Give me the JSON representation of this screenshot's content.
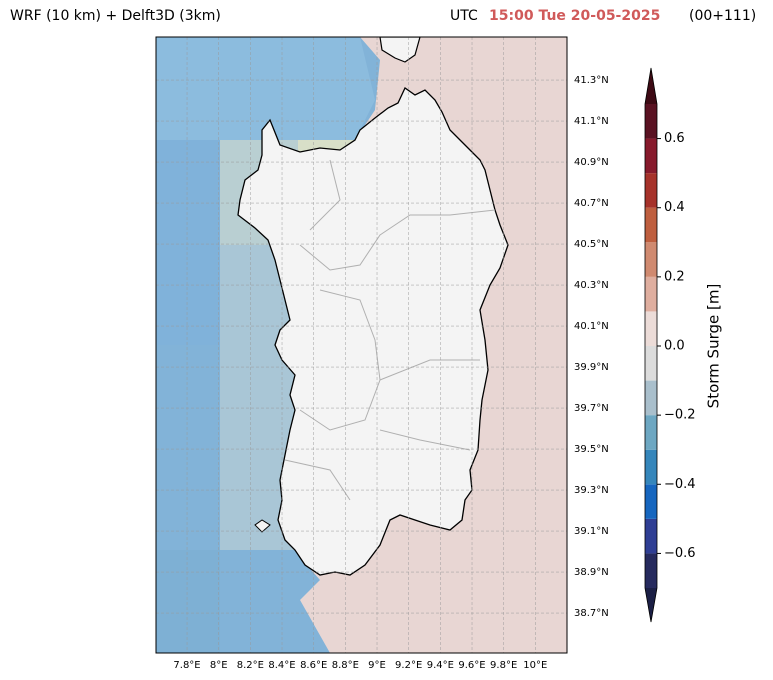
{
  "header": {
    "left_title": "WRF (10 km) + Delft3D (3km)",
    "utc_label": "UTC",
    "datetime": "15:00 Tue 20-05-2025",
    "forecast": "(00+111)"
  },
  "map": {
    "xlim": [
      7.604,
      10.2
    ],
    "ylim": [
      38.505,
      41.51
    ],
    "grid": true,
    "xticks": [
      {
        "value": 7.8,
        "label": "7.8°E"
      },
      {
        "value": 8,
        "label": "8°E"
      },
      {
        "value": 8.2,
        "label": "8.2°E"
      },
      {
        "value": 8.4,
        "label": "8.4°E"
      },
      {
        "value": 8.6,
        "label": "8.6°E"
      },
      {
        "value": 8.8,
        "label": "8.8°E"
      },
      {
        "value": 9,
        "label": "9°E"
      },
      {
        "value": 9.2,
        "label": "9.2°E"
      },
      {
        "value": 9.4,
        "label": "9.4°E"
      },
      {
        "value": 9.6,
        "label": "9.6°E"
      },
      {
        "value": 9.8,
        "label": "9.8°E"
      },
      {
        "value": 10,
        "label": "10°E"
      }
    ],
    "yticks": [
      {
        "value": 41.3,
        "label": "41.3°N"
      },
      {
        "value": 41.1,
        "label": "41.1°N"
      },
      {
        "value": 40.9,
        "label": "40.9°N"
      },
      {
        "value": 40.7,
        "label": "40.7°N"
      },
      {
        "value": 40.5,
        "label": "40.5°N"
      },
      {
        "value": 40.3,
        "label": "40.3°N"
      },
      {
        "value": 40.1,
        "label": "40.1°N"
      },
      {
        "value": 39.9,
        "label": "39.9°N"
      },
      {
        "value": 39.7,
        "label": "39.7°N"
      },
      {
        "value": 39.5,
        "label": "39.5°N"
      },
      {
        "value": 39.3,
        "label": "39.3°N"
      },
      {
        "value": 39.1,
        "label": "39.1°N"
      },
      {
        "value": 38.9,
        "label": "38.9°N"
      },
      {
        "value": 38.7,
        "label": "38.7°N"
      }
    ]
  },
  "colorbar": {
    "label": "Storm Surge [m]",
    "lim": [
      -0.7,
      0.7
    ],
    "ticks": [
      {
        "value": -0.6,
        "label": "−0.6"
      },
      {
        "value": -0.4,
        "label": "−0.4"
      },
      {
        "value": -0.2,
        "label": "−0.2"
      },
      {
        "value": 0,
        "label": "0.0"
      },
      0.2,
      0.4,
      0.6
    ],
    "boundaries": [
      -0.7,
      -0.6,
      -0.5,
      -0.4,
      -0.3,
      -0.2,
      -0.1,
      0,
      0.1,
      0.2,
      0.3,
      0.4,
      0.5,
      0.6,
      0.7
    ],
    "colors": [
      "#262a5e",
      "#2f3e94",
      "#1666bf",
      "#3586bb",
      "#6da7c2",
      "#a9bfcc",
      "#dcdcdc",
      "#ecdcd8",
      "#dfae9f",
      "#d08a70",
      "#bf5f3f",
      "#a6322a",
      "#871a2c",
      "#5a1222"
    ],
    "extend_colors": [
      "#1b1f45",
      "#3d0a14"
    ]
  }
}
